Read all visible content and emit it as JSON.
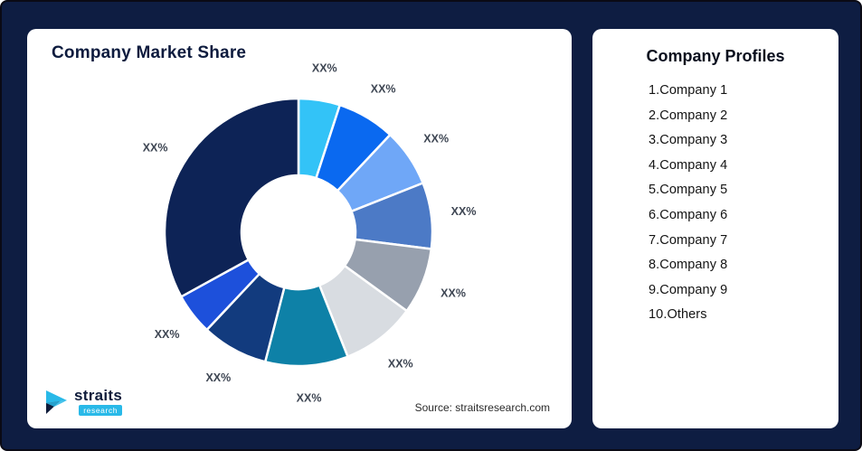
{
  "background": "#0E1D42",
  "chart_card": {
    "title": "Company Market Share",
    "source": "Source: straitsresearch.com"
  },
  "logo": {
    "brand": "straits",
    "sub": "research",
    "accent_color": "#29B9E8",
    "navy_color": "#0E1B3A"
  },
  "profiles": {
    "title": "Company Profiles",
    "items": [
      "1.Company 1",
      "2.Company 2",
      "3.Company 3",
      "4.Company 4",
      "5.Company 5",
      "6.Company 6",
      "7.Company 7",
      "8.Company 8",
      "9.Company 9",
      "10.Others"
    ]
  },
  "chart_data": {
    "type": "pie",
    "variant": "donut",
    "title": "Company Market Share",
    "legend": "none",
    "note": "All slice labels are printed as XX% placeholders; slice sizes below are estimated from arc angles in the image (percent of whole).",
    "start_angle_deg": 0,
    "direction": "clockwise-from-top",
    "segments": [
      {
        "label": "XX%",
        "value": 5,
        "color": "#33C3F7"
      },
      {
        "label": "XX%",
        "value": 7,
        "color": "#0A69F0"
      },
      {
        "label": "XX%",
        "value": 7,
        "color": "#6FA7F7"
      },
      {
        "label": "XX%",
        "value": 8,
        "color": "#4C7AC6"
      },
      {
        "label": "XX%",
        "value": 8,
        "color": "#97A0AE"
      },
      {
        "label": "XX%",
        "value": 9,
        "color": "#D8DCE1"
      },
      {
        "label": "XX%",
        "value": 10,
        "color": "#0E81A7"
      },
      {
        "label": "XX%",
        "value": 8,
        "color": "#123B7E"
      },
      {
        "label": "XX%",
        "value": 5,
        "color": "#1D50DB"
      },
      {
        "label": "XX%",
        "value": 33,
        "color": "#0D2356"
      }
    ]
  }
}
